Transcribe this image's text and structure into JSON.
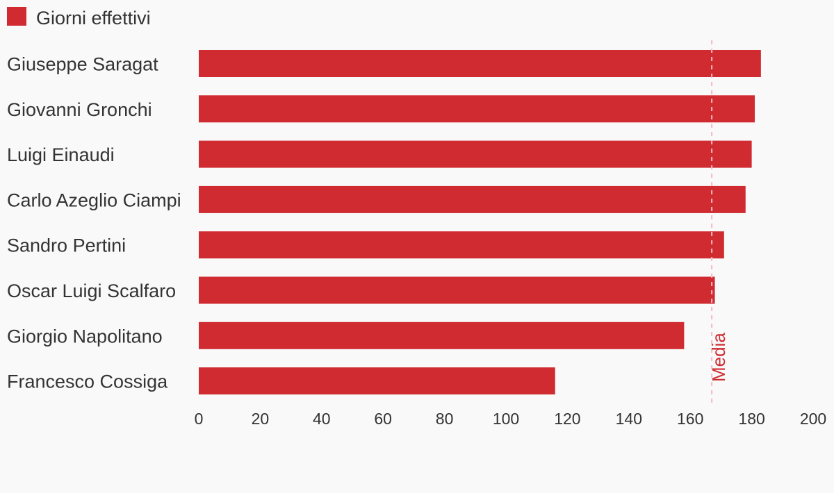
{
  "chart_data": {
    "type": "bar",
    "orientation": "horizontal",
    "categories": [
      "Giuseppe Saragat",
      "Giovanni Gronchi",
      "Luigi Einaudi",
      "Carlo Azeglio Ciampi",
      "Sandro Pertini",
      "Oscar Luigi Scalfaro",
      "Giorgio Napolitano",
      "Francesco Cossiga"
    ],
    "series": [
      {
        "name": "Giorni effettivi",
        "color": "#cf2b30",
        "values": [
          183,
          181,
          180,
          178,
          171,
          168,
          158,
          116
        ]
      }
    ],
    "xlim": [
      0,
      200
    ],
    "xticks": [
      0,
      20,
      40,
      60,
      80,
      100,
      120,
      140,
      160,
      180,
      200
    ],
    "reference_line": {
      "label": "Media",
      "value": 167,
      "color": "#cf2b30",
      "line_color": "#f4b8c4",
      "style": "dashed"
    },
    "legend_position": "top-left",
    "grid": false,
    "title": "",
    "xlabel": "",
    "ylabel": ""
  }
}
